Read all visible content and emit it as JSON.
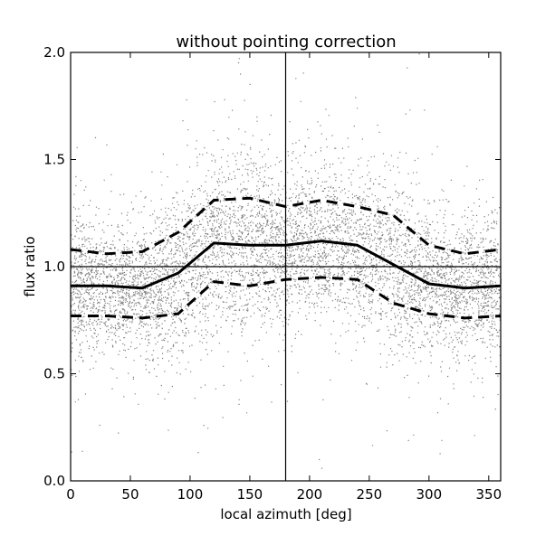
{
  "chart_data": {
    "type": "scatter",
    "title": "without pointing correction",
    "xlabel": "local azimuth [deg]",
    "ylabel": "flux ratio",
    "xlim": [
      0,
      360
    ],
    "ylim": [
      0.0,
      2.0
    ],
    "xticks": [
      0,
      50,
      100,
      150,
      200,
      250,
      300,
      350
    ],
    "yticks": [
      0.0,
      0.5,
      1.0,
      1.5,
      2.0
    ],
    "xtick_labels": [
      "0",
      "50",
      "100",
      "150",
      "200",
      "250",
      "300",
      "350"
    ],
    "ytick_labels": [
      "0.0",
      "0.5",
      "1.0",
      "1.5",
      "2.0"
    ],
    "grid": false,
    "reference_lines": {
      "horizontal_y": 1.0,
      "vertical_x": 180
    },
    "scatter_color": "#808080",
    "line_color": "#000000",
    "series": [
      {
        "style": "solid",
        "x": [
          0,
          30,
          60,
          90,
          120,
          150,
          180,
          210,
          240,
          270,
          300,
          330,
          360
        ],
        "y": [
          0.91,
          0.91,
          0.9,
          0.97,
          1.11,
          1.1,
          1.1,
          1.12,
          1.1,
          1.01,
          0.92,
          0.9,
          0.91
        ]
      },
      {
        "style": "dashed",
        "x": [
          0,
          30,
          60,
          90,
          120,
          150,
          180,
          210,
          240,
          270,
          300,
          330,
          360
        ],
        "y": [
          1.08,
          1.06,
          1.07,
          1.16,
          1.31,
          1.32,
          1.28,
          1.31,
          1.28,
          1.24,
          1.1,
          1.06,
          1.08
        ]
      },
      {
        "style": "dashed",
        "x": [
          0,
          30,
          60,
          90,
          120,
          150,
          180,
          210,
          240,
          270,
          300,
          330,
          360
        ],
        "y": [
          0.77,
          0.77,
          0.76,
          0.78,
          0.93,
          0.91,
          0.94,
          0.95,
          0.94,
          0.83,
          0.78,
          0.76,
          0.77
        ]
      }
    ]
  }
}
